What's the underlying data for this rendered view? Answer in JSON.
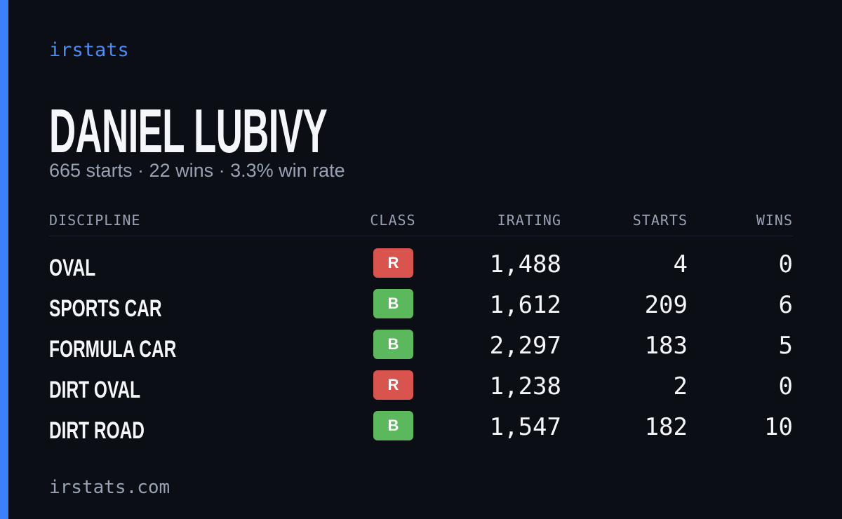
{
  "brand": "irstats",
  "driver": {
    "name": "DANIEL LUBIVY",
    "summary": "665 starts · 22 wins · 3.3% win rate"
  },
  "table": {
    "columns": [
      "DISCIPLINE",
      "CLASS",
      "IRATING",
      "STARTS",
      "WINS"
    ],
    "rows": [
      [
        "OVAL",
        "R",
        "1,488",
        "4",
        "0"
      ],
      [
        "SPORTS CAR",
        "B",
        "1,612",
        "209",
        "6"
      ],
      [
        "FORMULA CAR",
        "B",
        "2,297",
        "183",
        "5"
      ],
      [
        "DIRT OVAL",
        "R",
        "1,238",
        "2",
        "0"
      ],
      [
        "DIRT ROAD",
        "B",
        "1,547",
        "182",
        "10"
      ]
    ]
  },
  "class_colors": {
    "R": "#d9534f",
    "B": "#5cb85c"
  },
  "footer": "irstats.com"
}
